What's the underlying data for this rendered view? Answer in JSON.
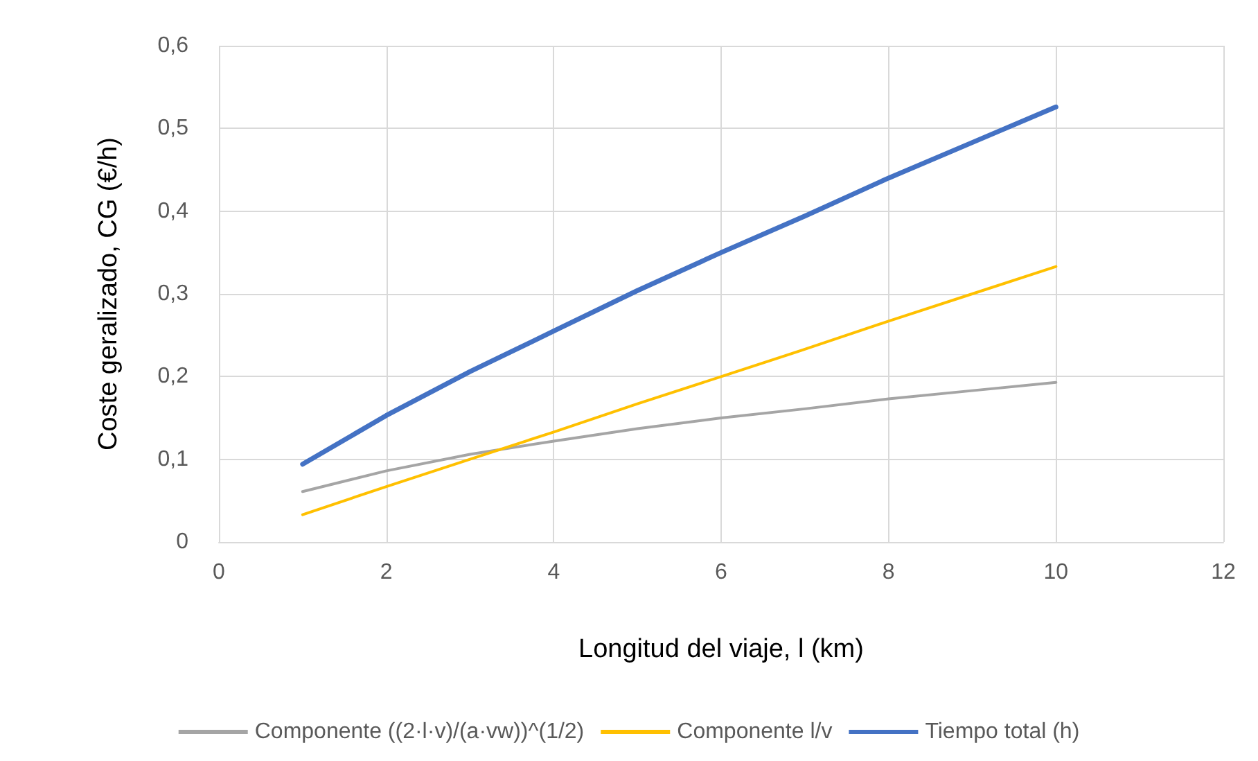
{
  "chart_data": {
    "type": "line",
    "xlabel": "Longitud del viaje, l (km)",
    "ylabel": "Coste geralizado, CG (€/h)",
    "x": [
      1,
      2,
      3,
      4,
      5,
      6,
      7,
      8,
      9,
      10
    ],
    "series": [
      {
        "name": "Componente ((2·l·v)/(a·vw))^(1/2)",
        "color": "#a5a5a5",
        "values": [
          0.061,
          0.086,
          0.106,
          0.122,
          0.137,
          0.15,
          0.161,
          0.173,
          0.183,
          0.193
        ]
      },
      {
        "name": "Componente l/v",
        "color": "#ffc000",
        "values": [
          0.033,
          0.067,
          0.1,
          0.133,
          0.167,
          0.2,
          0.233,
          0.267,
          0.3,
          0.333
        ]
      },
      {
        "name": "Tiempo total (h)",
        "color": "#4472c4",
        "values": [
          0.094,
          0.153,
          0.206,
          0.255,
          0.304,
          0.35,
          0.394,
          0.44,
          0.483,
          0.526
        ]
      }
    ],
    "xlim": [
      0,
      12
    ],
    "xticks": [
      0,
      2,
      4,
      6,
      8,
      10,
      12
    ],
    "ylim": [
      0,
      0.6
    ],
    "yticks": [
      0,
      {
        "value": 0.1,
        "label": "0,1"
      },
      {
        "value": 0.2,
        "label": "0,2"
      },
      {
        "value": 0.3,
        "label": "0,3"
      },
      {
        "value": 0.4,
        "label": "0,4"
      },
      {
        "value": 0.5,
        "label": "0,5"
      },
      {
        "value": 0.6,
        "label": "0,6"
      }
    ],
    "grid": true,
    "legend": "bottom",
    "marker": "none",
    "line_style": "solid"
  }
}
